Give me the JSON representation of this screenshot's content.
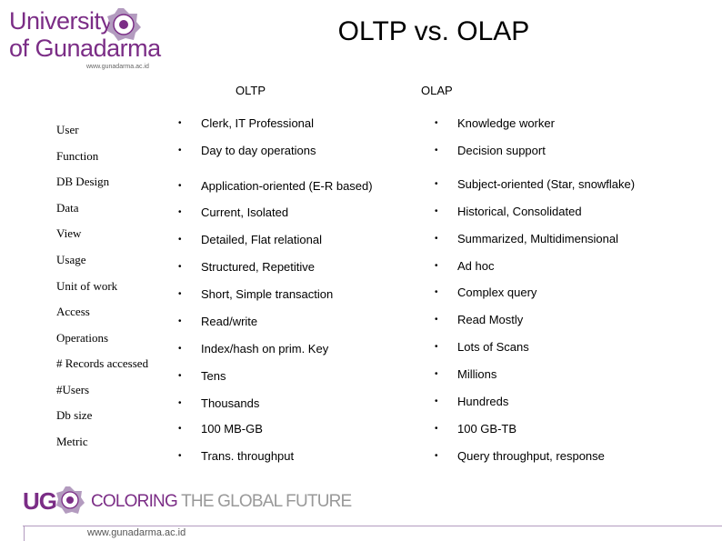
{
  "logo": {
    "line1": "University",
    "line2": "of Gunadarma",
    "url": "www.gunadarma.ac.id"
  },
  "title": "OLTP vs. OLAP",
  "columns": {
    "oltp": "OLTP",
    "olap": "OLAP"
  },
  "row_labels": [
    "User",
    "Function",
    "DB Design",
    "Data",
    "View",
    "Usage",
    "Unit of work",
    "Access",
    "Operations",
    "# Records accessed",
    "#Users",
    "Db size",
    "Metric"
  ],
  "bullet_glyph": "•",
  "oltp_items": [
    "Clerk, IT Professional",
    "Day to day operations",
    "Application-oriented (E-R based)",
    "Current, Isolated",
    "Detailed, Flat relational",
    "Structured, Repetitive",
    "Short, Simple transaction",
    "Read/write",
    "Index/hash on prim. Key",
    "Tens",
    "Thousands",
    "100 MB-GB",
    "Trans. throughput"
  ],
  "olap_items": [
    "Knowledge worker",
    "Decision support",
    "Subject-oriented (Star, snowflake)",
    "Historical, Consolidated",
    "Summarized, Multidimensional",
    "Ad hoc",
    "Complex query",
    "Read Mostly",
    "Lots of Scans",
    "Millions",
    "Hundreds",
    "100 GB-TB",
    "Query throughput, response"
  ],
  "footer": {
    "ug": "UG",
    "tagline_a": "COLORING",
    "tagline_b": " THE GLOBAL FUTURE",
    "url": "www.gunadarma.ac.id"
  },
  "colors": {
    "brand_purple": "#7b2d86",
    "grey": "#999999"
  }
}
